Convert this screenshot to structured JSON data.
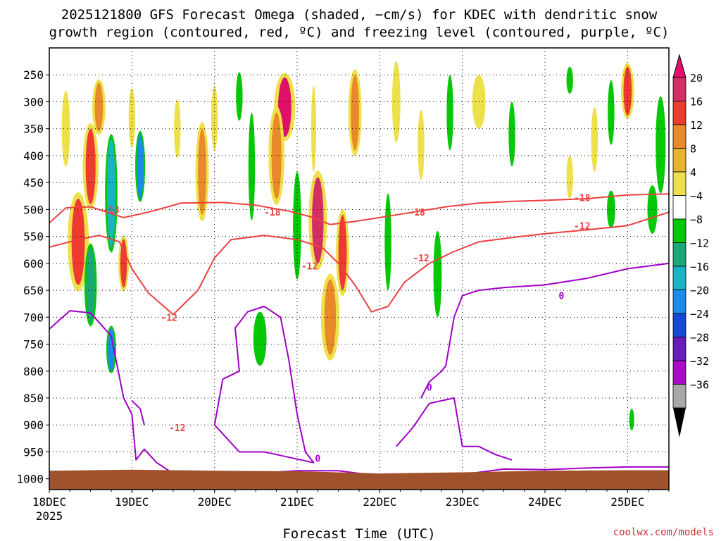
{
  "chart_data": {
    "type": "heatmap",
    "title_line1": "2025121800 GFS Forecast Omega (shaded, −cm/s) for KDEC with dendritic snow",
    "title_line2": "growth region (contoured, red, ºC) and freezing level (contoured, purple, ºC)",
    "xlabel": "Forecast Time (UTC)",
    "x_ticks": [
      "18DEC",
      "19DEC",
      "20DEC",
      "21DEC",
      "22DEC",
      "23DEC",
      "24DEC",
      "25DEC"
    ],
    "x_year": "2025",
    "x_range_days": [
      0,
      7.5
    ],
    "y_ticks": [
      250,
      300,
      350,
      400,
      450,
      500,
      550,
      600,
      650,
      700,
      750,
      800,
      850,
      900,
      950,
      1000
    ],
    "y_range_hpa": [
      200,
      1020
    ],
    "colorbar": {
      "labels": [
        "20",
        "16",
        "12",
        "8",
        "4",
        "−4",
        "−8",
        "−12",
        "−16",
        "−20",
        "−24",
        "−28",
        "−32",
        "−36"
      ],
      "colors": [
        "#d42f64",
        "#ee3b30",
        "#e88a2a",
        "#e8b430",
        "#eee04a",
        "#ffffff",
        "#06c806",
        "#1aa878",
        "#18b4c4",
        "#1c8ae8",
        "#1648d8",
        "#6a1cb8",
        "#a80ac8",
        "#a8a8a8"
      ],
      "extend_top": "#e0106a",
      "extend_bottom": "#000000"
    },
    "contour_labels": {
      "dgz_cold": "-18",
      "dgz_warm": "-12",
      "freezing": "0"
    },
    "dgz_minus18": [
      [
        0,
        525
      ],
      [
        0.2,
        497
      ],
      [
        0.5,
        495
      ],
      [
        0.9,
        515
      ],
      [
        1.2,
        505
      ],
      [
        1.6,
        488
      ],
      [
        2.1,
        487
      ],
      [
        2.5,
        492
      ],
      [
        2.9,
        503
      ],
      [
        3.2,
        515
      ],
      [
        3.4,
        528
      ],
      [
        3.7,
        522
      ],
      [
        4.0,
        515
      ],
      [
        4.4,
        505
      ],
      [
        4.8,
        495
      ],
      [
        5.2,
        488
      ],
      [
        5.6,
        485
      ],
      [
        6.0,
        483
      ],
      [
        6.5,
        480
      ],
      [
        7.0,
        473
      ],
      [
        7.5,
        471
      ]
    ],
    "dgz_minus12": [
      [
        0,
        570
      ],
      [
        0.3,
        558
      ],
      [
        0.6,
        548
      ],
      [
        0.85,
        560
      ],
      [
        1.0,
        610
      ],
      [
        1.2,
        655
      ],
      [
        1.5,
        695
      ],
      [
        1.8,
        650
      ],
      [
        2.0,
        590
      ],
      [
        2.2,
        556
      ],
      [
        2.6,
        548
      ],
      [
        3.0,
        556
      ],
      [
        3.3,
        570
      ],
      [
        3.5,
        600
      ],
      [
        3.7,
        640
      ],
      [
        3.9,
        690
      ],
      [
        4.1,
        680
      ],
      [
        4.3,
        635
      ],
      [
        4.6,
        600
      ],
      [
        4.9,
        578
      ],
      [
        5.2,
        560
      ],
      [
        5.6,
        552
      ],
      [
        6.0,
        545
      ],
      [
        6.5,
        538
      ],
      [
        7.0,
        530
      ],
      [
        7.5,
        505
      ]
    ],
    "freezing_level": [
      [
        0,
        722
      ],
      [
        0.25,
        688
      ],
      [
        0.5,
        692
      ],
      [
        0.75,
        735
      ],
      [
        0.9,
        850
      ],
      [
        1.0,
        880
      ],
      [
        1.05,
        965
      ],
      [
        1.15,
        945
      ],
      [
        1.3,
        970
      ],
      [
        1.5,
        990
      ],
      [
        2.0,
        995
      ],
      [
        2.5,
        990
      ],
      [
        3.0,
        985
      ],
      [
        3.5,
        985
      ],
      [
        4.0,
        995
      ],
      [
        4.5,
        993
      ],
      [
        5.0,
        992
      ],
      [
        5.5,
        982
      ],
      [
        6.0,
        983
      ],
      [
        6.5,
        980
      ],
      [
        7.0,
        978
      ],
      [
        7.5,
        978
      ]
    ],
    "freezing_bubbles": [
      [
        [
          1.0,
          855
        ],
        [
          1.1,
          870
        ],
        [
          1.15,
          900
        ]
      ],
      [
        [
          2.1,
          815
        ],
        [
          2.3,
          800
        ],
        [
          2.25,
          720
        ],
        [
          2.4,
          690
        ],
        [
          2.6,
          680
        ],
        [
          2.8,
          700
        ],
        [
          2.9,
          780
        ],
        [
          3.0,
          880
        ],
        [
          3.1,
          950
        ],
        [
          3.2,
          970
        ],
        [
          2.6,
          950
        ],
        [
          2.3,
          950
        ],
        [
          2.0,
          900
        ],
        [
          2.1,
          815
        ]
      ],
      [
        [
          4.5,
          850
        ],
        [
          4.6,
          820
        ],
        [
          4.75,
          800
        ],
        [
          4.8,
          790
        ],
        [
          4.9,
          700
        ],
        [
          5.0,
          660
        ],
        [
          5.2,
          650
        ],
        [
          5.5,
          645
        ],
        [
          6.0,
          640
        ],
        [
          6.5,
          628
        ],
        [
          7.0,
          610
        ],
        [
          7.5,
          600
        ]
      ],
      [
        [
          4.2,
          940
        ],
        [
          4.4,
          905
        ],
        [
          4.6,
          860
        ],
        [
          4.9,
          850
        ],
        [
          5.0,
          940
        ],
        [
          5.2,
          940
        ],
        [
          5.4,
          955
        ],
        [
          5.6,
          965
        ]
      ]
    ],
    "omega_cells": [
      {
        "t": 0.35,
        "p": 560,
        "dt": 0.08,
        "dp": 160,
        "v": 12
      },
      {
        "t": 0.5,
        "p": 420,
        "dt": 0.06,
        "dp": 140,
        "v": 12
      },
      {
        "t": 0.5,
        "p": 640,
        "dt": 0.05,
        "dp": 140,
        "v": -12
      },
      {
        "t": 0.75,
        "p": 470,
        "dt": 0.05,
        "dp": 200,
        "v": -16
      },
      {
        "t": 0.75,
        "p": 760,
        "dt": 0.04,
        "dp": 80,
        "v": -20
      },
      {
        "t": 0.9,
        "p": 600,
        "dt": 0.04,
        "dp": 90,
        "v": 12
      },
      {
        "t": 1.1,
        "p": 420,
        "dt": 0.04,
        "dp": 120,
        "v": -20
      },
      {
        "t": 0.2,
        "p": 350,
        "dt": 0.05,
        "dp": 140,
        "v": 4
      },
      {
        "t": 0.6,
        "p": 310,
        "dt": 0.05,
        "dp": 90,
        "v": 8
      },
      {
        "t": 1.0,
        "p": 330,
        "dt": 0.04,
        "dp": 110,
        "v": 4
      },
      {
        "t": 1.55,
        "p": 350,
        "dt": 0.04,
        "dp": 110,
        "v": 4
      },
      {
        "t": 1.85,
        "p": 430,
        "dt": 0.05,
        "dp": 160,
        "v": 8
      },
      {
        "t": 2.0,
        "p": 330,
        "dt": 0.04,
        "dp": 120,
        "v": 4
      },
      {
        "t": 2.3,
        "p": 290,
        "dt": 0.04,
        "dp": 90,
        "v": -8
      },
      {
        "t": 2.45,
        "p": 420,
        "dt": 0.04,
        "dp": 200,
        "v": -8
      },
      {
        "t": 2.85,
        "p": 310,
        "dt": 0.08,
        "dp": 110,
        "v": 20
      },
      {
        "t": 2.75,
        "p": 400,
        "dt": 0.06,
        "dp": 160,
        "v": 8
      },
      {
        "t": 3.0,
        "p": 530,
        "dt": 0.05,
        "dp": 200,
        "v": -8
      },
      {
        "t": 2.55,
        "p": 740,
        "dt": 0.08,
        "dp": 100,
        "v": -8
      },
      {
        "t": 3.25,
        "p": 520,
        "dt": 0.07,
        "dp": 160,
        "v": 16
      },
      {
        "t": 3.4,
        "p": 700,
        "dt": 0.07,
        "dp": 140,
        "v": 8
      },
      {
        "t": 3.55,
        "p": 580,
        "dt": 0.05,
        "dp": 140,
        "v": 12
      },
      {
        "t": 3.2,
        "p": 350,
        "dt": 0.03,
        "dp": 160,
        "v": 4
      },
      {
        "t": 3.7,
        "p": 320,
        "dt": 0.05,
        "dp": 140,
        "v": 8
      },
      {
        "t": 4.2,
        "p": 300,
        "dt": 0.05,
        "dp": 150,
        "v": 4
      },
      {
        "t": 4.1,
        "p": 560,
        "dt": 0.04,
        "dp": 180,
        "v": -8
      },
      {
        "t": 4.5,
        "p": 380,
        "dt": 0.04,
        "dp": 130,
        "v": 4
      },
      {
        "t": 4.85,
        "p": 320,
        "dt": 0.04,
        "dp": 140,
        "v": -8
      },
      {
        "t": 4.7,
        "p": 620,
        "dt": 0.05,
        "dp": 160,
        "v": -8
      },
      {
        "t": 5.2,
        "p": 300,
        "dt": 0.08,
        "dp": 100,
        "v": 4
      },
      {
        "t": 5.6,
        "p": 360,
        "dt": 0.04,
        "dp": 120,
        "v": -8
      },
      {
        "t": 6.3,
        "p": 260,
        "dt": 0.04,
        "dp": 50,
        "v": -8
      },
      {
        "t": 6.3,
        "p": 440,
        "dt": 0.04,
        "dp": 80,
        "v": 4
      },
      {
        "t": 6.6,
        "p": 370,
        "dt": 0.04,
        "dp": 120,
        "v": 4
      },
      {
        "t": 6.8,
        "p": 500,
        "dt": 0.05,
        "dp": 70,
        "v": -8
      },
      {
        "t": 6.8,
        "p": 320,
        "dt": 0.04,
        "dp": 120,
        "v": -8
      },
      {
        "t": 7.0,
        "p": 280,
        "dt": 0.05,
        "dp": 90,
        "v": 12
      },
      {
        "t": 7.3,
        "p": 500,
        "dt": 0.06,
        "dp": 90,
        "v": -8
      },
      {
        "t": 7.4,
        "p": 380,
        "dt": 0.06,
        "dp": 180,
        "v": -8
      },
      {
        "t": 7.05,
        "p": 890,
        "dt": 0.03,
        "dp": 40,
        "v": -8
      }
    ]
  },
  "credit": "coolwx.com/models"
}
